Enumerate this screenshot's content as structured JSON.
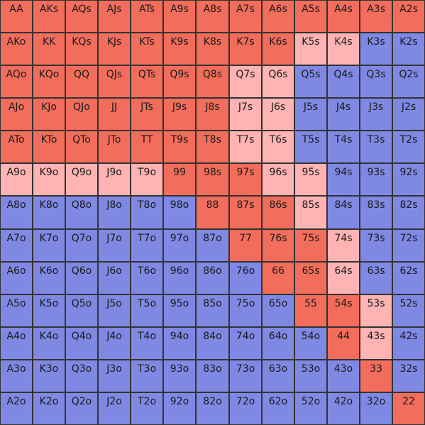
{
  "colors": {
    "R": "#f26d5b",
    "P": "#ffb3b3",
    "B": "#7f89e4"
  },
  "ranks": [
    "A",
    "K",
    "Q",
    "J",
    "T",
    "9",
    "8",
    "7",
    "6",
    "5",
    "4",
    "3",
    "2"
  ],
  "color_rows": [
    "RRRRRRRRRRRRR",
    "RRRRRRRRRPPBB",
    "RRRRRRRPPBBBB",
    "RRRRRRRPPBBBB",
    "RRRRRRRPPBBBB",
    "PPPPPRRRPPBBB",
    "BBBBBBRRRPBBB",
    "BBBBBBBRRRPBB",
    "BBBBBBBBRRPBB",
    "BBBBBBBBBRRPB",
    "BBBBBBBBBBRPB",
    "BBBBBBBBBBBRB",
    "BBBBBBBBBBBBR"
  ],
  "hands": [
    [
      "AA",
      "AKs",
      "AQs",
      "AJs",
      "ATs",
      "A9s",
      "A8s",
      "A7s",
      "A6s",
      "A5s",
      "A4s",
      "A3s",
      "A2s"
    ],
    [
      "AKo",
      "KK",
      "KQs",
      "KJs",
      "KTs",
      "K9s",
      "K8s",
      "K7s",
      "K6s",
      "K5s",
      "K4s",
      "K3s",
      "K2s"
    ],
    [
      "AQo",
      "KQo",
      "QQ",
      "QJs",
      "QTs",
      "Q9s",
      "Q8s",
      "Q7s",
      "Q6s",
      "Q5s",
      "Q4s",
      "Q3s",
      "Q2s"
    ],
    [
      "AJo",
      "KJo",
      "QJo",
      "JJ",
      "JTs",
      "J9s",
      "J8s",
      "J7s",
      "J6s",
      "J5s",
      "J4s",
      "J3s",
      "J2s"
    ],
    [
      "ATo",
      "KTo",
      "QTo",
      "JTo",
      "TT",
      "T9s",
      "T8s",
      "T7s",
      "T6s",
      "T5s",
      "T4s",
      "T3s",
      "T2s"
    ],
    [
      "A9o",
      "K9o",
      "Q9o",
      "J9o",
      "T9o",
      "99",
      "98s",
      "97s",
      "96s",
      "95s",
      "94s",
      "93s",
      "92s"
    ],
    [
      "A8o",
      "K8o",
      "Q8o",
      "J8o",
      "T8o",
      "98o",
      "88",
      "87s",
      "86s",
      "85s",
      "84s",
      "83s",
      "82s"
    ],
    [
      "A7o",
      "K7o",
      "Q7o",
      "J7o",
      "T7o",
      "97o",
      "87o",
      "77",
      "76s",
      "75s",
      "74s",
      "73s",
      "72s"
    ],
    [
      "A6o",
      "K6o",
      "Q6o",
      "J6o",
      "T6o",
      "96o",
      "86o",
      "76o",
      "66",
      "65s",
      "64s",
      "63s",
      "62s"
    ],
    [
      "A5o",
      "K5o",
      "Q5o",
      "J5o",
      "T5o",
      "95o",
      "85o",
      "75o",
      "65o",
      "55",
      "54s",
      "53s",
      "52s"
    ],
    [
      "A4o",
      "K4o",
      "Q4o",
      "J4o",
      "T4o",
      "94o",
      "84o",
      "74o",
      "64o",
      "54o",
      "44",
      "43s",
      "42s"
    ],
    [
      "A3o",
      "K3o",
      "Q3o",
      "J3o",
      "T3o",
      "93o",
      "83o",
      "73o",
      "63o",
      "53o",
      "43o",
      "33",
      "32s"
    ],
    [
      "A2o",
      "K2o",
      "Q2o",
      "J2o",
      "T2o",
      "92o",
      "82o",
      "72o",
      "62o",
      "52o",
      "42o",
      "32o",
      "22"
    ]
  ]
}
